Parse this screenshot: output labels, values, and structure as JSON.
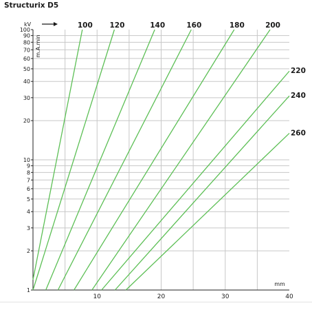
{
  "page_title": "Structurix D5",
  "chart_data": {
    "type": "line",
    "title": "Structurix D5",
    "xlabel": "mm",
    "ylabel": "m.A.min",
    "kv_label": "kV",
    "xlim": [
      0,
      40
    ],
    "ylim": [
      1,
      100
    ],
    "yscale": "log",
    "grid": true,
    "x_ticks": [
      10,
      20,
      30,
      40
    ],
    "y_ticks": [
      1,
      2,
      3,
      4,
      5,
      6,
      7,
      8,
      9,
      10,
      20,
      30,
      40,
      50,
      60,
      70,
      80,
      90,
      100
    ],
    "y_tick_labels": [
      "1",
      "2",
      "3",
      "4",
      "5",
      "6",
      "7",
      "8",
      "9",
      "10",
      "20",
      "30",
      "40",
      "50",
      "60",
      "70",
      "80",
      "90",
      "100"
    ],
    "series_color": "#5cbf55",
    "series": [
      {
        "name": "100",
        "x": [
          0,
          7.7
        ],
        "y": [
          1.2,
          100
        ]
      },
      {
        "name": "120",
        "x": [
          0,
          12.7
        ],
        "y": [
          1.0,
          100
        ]
      },
      {
        "name": "140",
        "x": [
          2.0,
          19.0
        ],
        "y": [
          1.0,
          100
        ]
      },
      {
        "name": "160",
        "x": [
          3.9,
          24.7
        ],
        "y": [
          1.0,
          100
        ]
      },
      {
        "name": "180",
        "x": [
          6.4,
          31.4
        ],
        "y": [
          1.0,
          100
        ]
      },
      {
        "name": "200",
        "x": [
          9.2,
          37.0
        ],
        "y": [
          1.0,
          100
        ]
      },
      {
        "name": "220",
        "x": [
          10.7,
          40.0
        ],
        "y": [
          1.0,
          48
        ]
      },
      {
        "name": "240",
        "x": [
          12.8,
          40.0
        ],
        "y": [
          1.0,
          31
        ]
      },
      {
        "name": "260",
        "x": [
          14.5,
          40.0
        ],
        "y": [
          1.0,
          16
        ]
      }
    ]
  }
}
